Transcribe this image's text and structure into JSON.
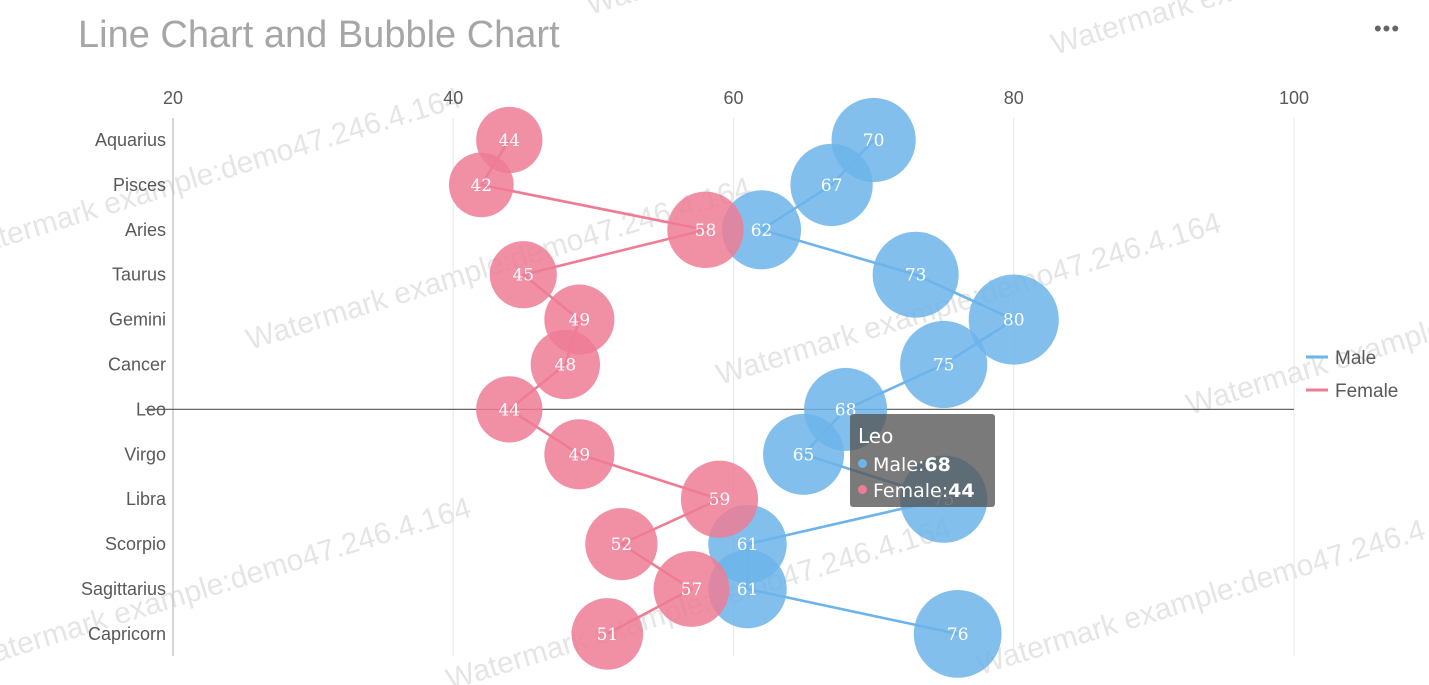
{
  "title": "Line Chart and Bubble Chart",
  "menu_label": "•••",
  "watermark": "Watermark example:demo47.246.4.164",
  "colors": {
    "male": "#6cb4ea",
    "female": "#ee7c95",
    "axis": "#666666",
    "grid": "#e8e8e8"
  },
  "chart_data": {
    "type": "line",
    "title": "Line Chart and Bubble Chart",
    "orientation": "horizontal",
    "categories": [
      "Aquarius",
      "Pisces",
      "Aries",
      "Taurus",
      "Gemini",
      "Cancer",
      "Leo",
      "Virgo",
      "Libra",
      "Scorpio",
      "Sagittarius",
      "Capricorn"
    ],
    "xlim": [
      20,
      100
    ],
    "xticks": [
      20,
      40,
      60,
      80,
      100
    ],
    "series": [
      {
        "name": "Male",
        "color": "#6cb4ea",
        "values": [
          70,
          67,
          62,
          73,
          80,
          75,
          68,
          65,
          75,
          61,
          61,
          76
        ]
      },
      {
        "name": "Female",
        "color": "#ee7c95",
        "values": [
          44,
          42,
          58,
          45,
          49,
          48,
          44,
          49,
          59,
          52,
          57,
          51
        ]
      }
    ],
    "bubble_size": "proportional to value",
    "legend_position": "right",
    "grid": true,
    "highlighted_category": "Leo"
  },
  "tooltip": {
    "title": "Leo",
    "rows": [
      {
        "label": "Male:",
        "value": "68"
      },
      {
        "label": "Female:",
        "value": "44"
      }
    ]
  }
}
